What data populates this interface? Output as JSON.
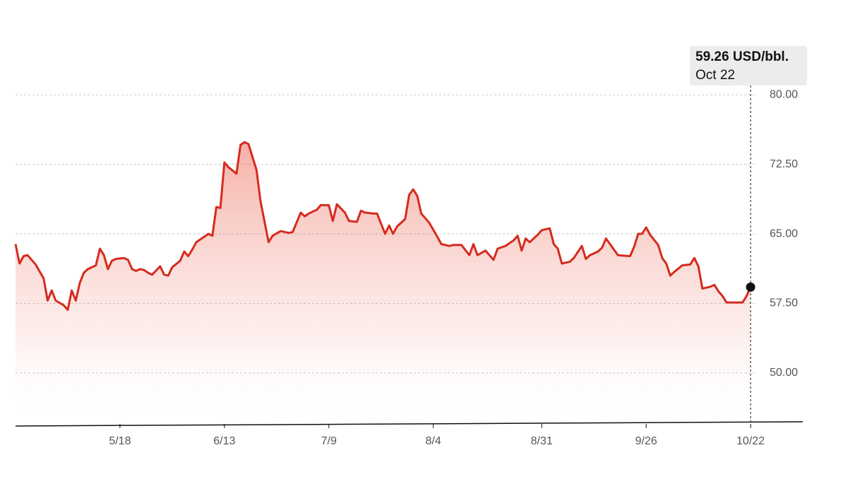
{
  "chart_data": {
    "type": "line",
    "x": [
      "4/22",
      "4/23",
      "4/24",
      "4/25",
      "4/27",
      "4/29",
      "4/30",
      "5/1",
      "5/2",
      "5/4",
      "5/5",
      "5/6",
      "5/7",
      "5/8",
      "5/9",
      "5/10",
      "5/12",
      "5/13",
      "5/14",
      "5/15",
      "5/16",
      "5/17",
      "5/19",
      "5/20",
      "5/21",
      "5/22",
      "5/23",
      "5/24",
      "5/25",
      "5/26",
      "5/28",
      "5/29",
      "5/30",
      "5/31",
      "6/2",
      "6/3",
      "6/4",
      "6/5",
      "6/6",
      "6/7",
      "6/8",
      "6/9",
      "6/10",
      "6/11",
      "6/12",
      "6/13",
      "6/14",
      "6/16",
      "6/17",
      "6/18",
      "6/19",
      "6/21",
      "6/22",
      "6/24",
      "6/25",
      "6/27",
      "6/29",
      "6/30",
      "7/2",
      "7/3",
      "7/4",
      "7/6",
      "7/7",
      "7/9",
      "7/10",
      "7/11",
      "7/13",
      "7/14",
      "7/16",
      "7/17",
      "7/18",
      "7/20",
      "7/21",
      "7/23",
      "7/24",
      "7/25",
      "7/26",
      "7/28",
      "7/29",
      "7/30",
      "7/31",
      "8/1",
      "8/3",
      "8/5",
      "8/6",
      "8/8",
      "8/9",
      "8/11",
      "8/13",
      "8/14",
      "8/15",
      "8/17",
      "8/18",
      "8/19",
      "8/20",
      "8/22",
      "8/24",
      "8/25",
      "8/26",
      "8/27",
      "8/28",
      "8/30",
      "8/31",
      "9/2",
      "9/3",
      "9/4",
      "9/5",
      "9/7",
      "9/8",
      "9/10",
      "9/11",
      "9/12",
      "9/14",
      "9/15",
      "9/16",
      "9/17",
      "9/19",
      "9/22",
      "9/23",
      "9/24",
      "9/25",
      "9/26",
      "9/27",
      "9/29",
      "9/30",
      "10/1",
      "10/2",
      "10/3",
      "10/5",
      "10/7",
      "10/8",
      "10/9",
      "10/10",
      "10/12",
      "10/13",
      "10/14",
      "10/15",
      "10/16",
      "10/18",
      "10/20",
      "10/21",
      "10/22"
    ],
    "series": [
      {
        "name": "USD/bbl.",
        "color": "#d52b1e",
        "values": [
          63.9,
          61.8,
          62.6,
          62.7,
          61.7,
          60.2,
          57.8,
          58.9,
          57.8,
          57.3,
          56.8,
          58.9,
          57.8,
          59.7,
          60.8,
          61.2,
          61.6,
          63.4,
          62.7,
          61.2,
          62.1,
          62.3,
          62.4,
          62.2,
          61.2,
          61.0,
          61.2,
          61.1,
          60.8,
          60.6,
          61.5,
          60.6,
          60.5,
          61.4,
          62.1,
          63.1,
          62.6,
          63.3,
          64.1,
          64.4,
          64.7,
          65.0,
          64.8,
          67.9,
          67.8,
          72.7,
          72.2,
          71.5,
          74.6,
          74.9,
          74.7,
          71.9,
          68.5,
          64.1,
          64.8,
          65.3,
          65.1,
          65.2,
          67.3,
          66.9,
          67.2,
          67.6,
          68.1,
          68.1,
          66.4,
          68.2,
          67.3,
          66.4,
          66.3,
          67.5,
          67.3,
          67.2,
          67.2,
          65.0,
          65.9,
          65.0,
          65.8,
          66.6,
          69.2,
          69.8,
          69.1,
          67.2,
          66.2,
          64.7,
          63.9,
          63.7,
          63.8,
          63.8,
          62.7,
          63.9,
          62.7,
          63.2,
          62.7,
          62.2,
          63.4,
          63.7,
          64.3,
          64.8,
          63.2,
          64.5,
          64.1,
          64.9,
          65.4,
          65.6,
          63.9,
          63.4,
          61.8,
          62.0,
          62.4,
          63.7,
          62.3,
          62.7,
          63.1,
          63.5,
          64.5,
          63.9,
          62.7,
          62.6,
          63.6,
          65.0,
          65.0,
          65.7,
          64.9,
          63.8,
          62.4,
          61.8,
          60.5,
          60.9,
          61.6,
          61.7,
          62.4,
          61.5,
          59.1,
          59.3,
          59.5,
          58.8,
          58.3,
          57.6,
          57.6,
          57.6,
          58.3,
          59.26
        ]
      }
    ],
    "xlim": [
      "4/22",
      "11/4"
    ],
    "xticks": [
      "5/18",
      "6/13",
      "7/9",
      "8/4",
      "8/31",
      "9/26",
      "10/22"
    ],
    "ylim": [
      44.5,
      82
    ],
    "yticks": [
      {
        "value": 50,
        "label": "50.00"
      },
      {
        "value": 57.5,
        "label": "57.50"
      },
      {
        "value": 65,
        "label": "65.00"
      },
      {
        "value": 72.5,
        "label": "72.50"
      },
      {
        "value": 80,
        "label": "80.00"
      }
    ],
    "grid": true,
    "tooltip": {
      "value_label": "59.26 USD/bbl.",
      "date_label": "Oct 22"
    }
  }
}
